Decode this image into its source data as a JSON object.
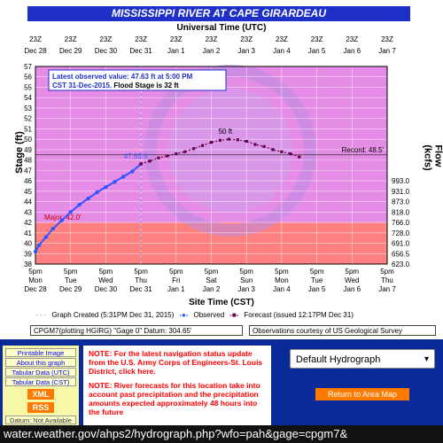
{
  "header": {
    "title": "MISSISSIPPI RIVER AT CAPE GIRARDEAU",
    "utc_label": "Universal Time (UTC)",
    "site_time_label": "Site Time (CST)"
  },
  "axes": {
    "left_title": "Stage (ft)",
    "right_title": "Flow (kcfs)",
    "utc_ticks": [
      {
        "top": "23Z",
        "bottom": "Dec 28"
      },
      {
        "top": "23Z",
        "bottom": "Dec 29"
      },
      {
        "top": "23Z",
        "bottom": "Dec 30"
      },
      {
        "top": "23Z",
        "bottom": "Dec 31"
      },
      {
        "top": "23Z",
        "bottom": "Jan 1"
      },
      {
        "top": "23Z",
        "bottom": "Jan 2"
      },
      {
        "top": "23Z",
        "bottom": "Jan 3"
      },
      {
        "top": "23Z",
        "bottom": "Jan 4"
      },
      {
        "top": "23Z",
        "bottom": "Jan 5"
      },
      {
        "top": "23Z",
        "bottom": "Jan 6"
      },
      {
        "top": "23Z",
        "bottom": "Jan 7"
      }
    ],
    "site_ticks": [
      {
        "time": "5pm",
        "day": "Mon",
        "date": "Dec 28"
      },
      {
        "time": "5pm",
        "day": "Tue",
        "date": "Dec 29"
      },
      {
        "time": "5pm",
        "day": "Wed",
        "date": "Dec 30"
      },
      {
        "time": "5pm",
        "day": "Thu",
        "date": "Dec 31"
      },
      {
        "time": "5pm",
        "day": "Fri",
        "date": "Jan 1"
      },
      {
        "time": "5pm",
        "day": "Sat",
        "date": "Jan 2"
      },
      {
        "time": "5pm",
        "day": "Sun",
        "date": "Jan 3"
      },
      {
        "time": "5pm",
        "day": "Mon",
        "date": "Jan 4"
      },
      {
        "time": "5pm",
        "day": "Tue",
        "date": "Jan 5"
      },
      {
        "time": "5pm",
        "day": "Wed",
        "date": "Jan 6"
      },
      {
        "time": "5pm",
        "day": "Thu",
        "date": "Jan 7"
      }
    ],
    "flow_ticks": [
      {
        "stage": 46,
        "label": "993.0"
      },
      {
        "stage": 45,
        "label": "931.0"
      },
      {
        "stage": 44,
        "label": "873.0"
      },
      {
        "stage": 43,
        "label": "818.0"
      },
      {
        "stage": 42,
        "label": "766.0"
      },
      {
        "stage": 41,
        "label": "728.0"
      },
      {
        "stage": 40,
        "label": "691.0"
      },
      {
        "stage": 39,
        "label": "656.5"
      },
      {
        "stage": 38,
        "label": "623.0"
      }
    ]
  },
  "chart_data": {
    "type": "line",
    "title": "MISSISSIPPI RIVER AT CAPE GIRARDEAU",
    "xlabel": "Site Time (CST)",
    "ylabel": "Stage (ft)",
    "y2label": "Flow (kcfs)",
    "ylim": [
      38,
      57
    ],
    "xlim": [
      "Dec 28 5pm",
      "Jan 7 5pm"
    ],
    "grid": true,
    "thresholds": [
      {
        "name": "Major",
        "label": "Major: 42.0'",
        "value": 42.0,
        "color": "#ff8080"
      },
      {
        "name": "Record",
        "label": "Record: 48.5'",
        "value": 48.5
      },
      {
        "name": "Flood Stage",
        "value": 32
      }
    ],
    "series": [
      {
        "name": "Observed",
        "color": "#3355ff",
        "x_days": [
          0,
          0.1,
          0.3,
          0.5,
          0.75,
          1.0,
          1.25,
          1.5,
          1.75,
          2.0,
          2.25,
          2.5,
          2.75,
          3.0
        ],
        "values": [
          39.2,
          39.8,
          40.6,
          41.4,
          42.2,
          43.0,
          43.7,
          44.3,
          44.9,
          45.4,
          45.9,
          46.4,
          46.9,
          47.63
        ]
      },
      {
        "name": "Forecast",
        "color": "#660044",
        "x_days": [
          3.0,
          3.25,
          3.5,
          3.75,
          4.0,
          4.25,
          4.5,
          4.75,
          5.0,
          5.25,
          5.5,
          5.75,
          6.0,
          6.25,
          6.5,
          6.75,
          7.0,
          7.25,
          7.5
        ],
        "values": [
          47.63,
          47.9,
          48.2,
          48.4,
          48.6,
          48.8,
          49.1,
          49.4,
          49.7,
          49.9,
          50.0,
          49.95,
          49.8,
          49.5,
          49.3,
          49.0,
          48.8,
          48.6,
          48.3
        ]
      }
    ],
    "annotations": [
      {
        "text": "47.63 ft",
        "x_day": 2.85,
        "value": 47.63
      },
      {
        "text": "50 ft",
        "x_day": 5.4,
        "value": 50.0
      }
    ]
  },
  "info_box": {
    "line1": "Latest observed value: 47.63 ft at 5:00 PM",
    "line2_a": "CST 31-Dec-2015.",
    "line2_b": " Flood Stage is 32 ft"
  },
  "legend": {
    "created": "Graph Created (5:31PM Dec 31, 2015)",
    "observed": "Observed",
    "forecast": "Forecast (issued 12:17PM Dec 31)"
  },
  "footer": {
    "datum": "CPGM7(plotting HGIRG) \"Gage 0\" Datum: 304.65'",
    "observations": "Observations courtesy of US Geological Survey"
  },
  "links": [
    "Printable Image",
    "About this graph",
    "Tabular Data (UTC)",
    "Tabular Data (CST)"
  ],
  "badges": {
    "xml": "XML",
    "rss": "RSS",
    "datum_note": "Datum: Not Available"
  },
  "notes": {
    "note1": "NOTE: For the latest navigation status update from the U.S. Army Corps of Engineers-St. Louis District, click here.",
    "note2": "NOTE: River forecasts for this location take into account past precipitation and the precipitation amounts expected approximately 48 hours into the future"
  },
  "controls": {
    "hydrograph_select": "Default Hydrograph",
    "area_button": "Return to Area Map"
  },
  "url": "water.weather.gov/ahps2/hydrograph.php?wfo=pah&gage=cpgm7&"
}
